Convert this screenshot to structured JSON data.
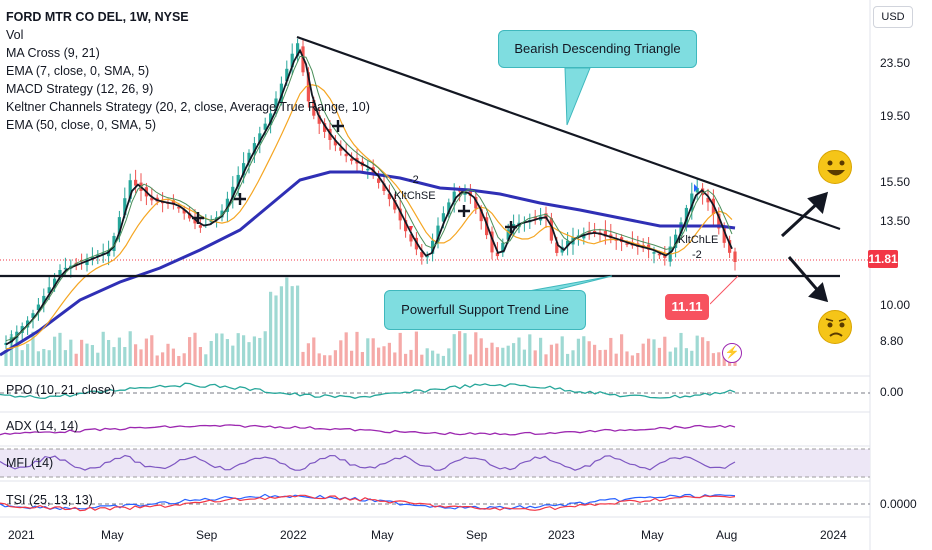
{
  "legend": {
    "symbol": "FORD MTR CO DEL, 1W, NYSE",
    "lines": [
      "Vol",
      "MA Cross (9, 21)",
      "EMA (7, close, 0, SMA, 5)",
      "MACD Strategy (12, 26, 9)",
      "Keltner Channels Strategy (20, 2, close, Average True Range, 10)",
      "EMA (50, close, 0, SMA, 5)"
    ]
  },
  "panes": {
    "ppo": "PPO (10, 21, close)",
    "adx": "ADX (14, 14)",
    "mfi": "MFI (14)",
    "tsi": "TSI (25, 13, 13)"
  },
  "price_scale": {
    "currency": "USD",
    "labels": [
      "23.50",
      "19.50",
      "15.50",
      "13.50",
      "10.00",
      "8.80"
    ],
    "current_price": "11.81",
    "ppo_zero": "0.00",
    "tsi_zero": "0.0000"
  },
  "time_axis": [
    "2021",
    "May",
    "Sep",
    "2022",
    "May",
    "Sep",
    "2023",
    "May",
    "Aug",
    "2024"
  ],
  "annotations": {
    "triangle_callout": "Bearish Descending Triangle",
    "support_callout": "Powerfull Support Trend Line",
    "price_target": "11.11",
    "strategy_short": "KltChSE",
    "strategy_long": "KltChLE",
    "marker_minus": "-2"
  },
  "colors": {
    "up": "#26a69a",
    "down": "#ef5350",
    "ema50": "#2f2fb5",
    "ema_orange": "#f5a623",
    "callout_fill": "#7fdde0",
    "price_tag": "#f23645"
  },
  "icons": [
    "smiling-face-icon",
    "worried-face-icon",
    "flash-icon"
  ]
}
